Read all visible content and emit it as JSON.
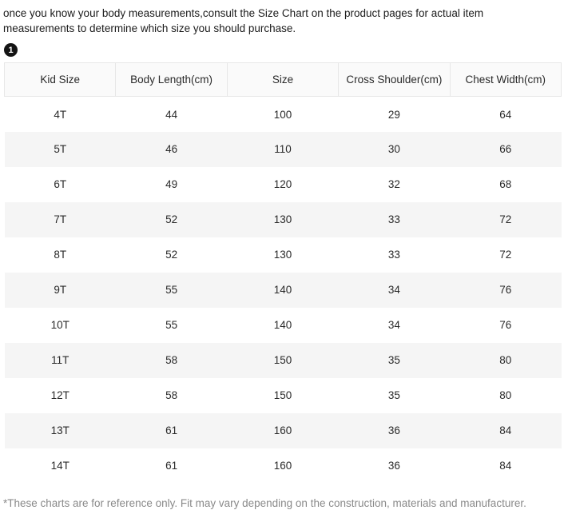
{
  "intro": "once you know your body measurements,consult the Size Chart on the product pages for actual item measurements to determine which size you should purchase.",
  "badge": "1",
  "table": {
    "headers": [
      "Kid Size",
      "Body Length(cm)",
      "Size",
      "Cross Shoulder(cm)",
      "Chest Width(cm)"
    ],
    "rows": [
      [
        "4T",
        "44",
        "100",
        "29",
        "64"
      ],
      [
        "5T",
        "46",
        "110",
        "30",
        "66"
      ],
      [
        "6T",
        "49",
        "120",
        "32",
        "68"
      ],
      [
        "7T",
        "52",
        "130",
        "33",
        "72"
      ],
      [
        "8T",
        "52",
        "130",
        "33",
        "72"
      ],
      [
        "9T",
        "55",
        "140",
        "34",
        "76"
      ],
      [
        "10T",
        "55",
        "140",
        "34",
        "76"
      ],
      [
        "11T",
        "58",
        "150",
        "35",
        "80"
      ],
      [
        "12T",
        "58",
        "150",
        "35",
        "80"
      ],
      [
        "13T",
        "61",
        "160",
        "36",
        "84"
      ],
      [
        "14T",
        "61",
        "160",
        "36",
        "84"
      ]
    ]
  },
  "footnote": "*These charts are for reference only. Fit may vary depending on the construction, materials and manufacturer.",
  "colors": {
    "row_alt": "#f5f5f5",
    "header_bg": "#fafafa",
    "badge_bg": "#141414",
    "footnote_text": "#8a8a8a"
  }
}
